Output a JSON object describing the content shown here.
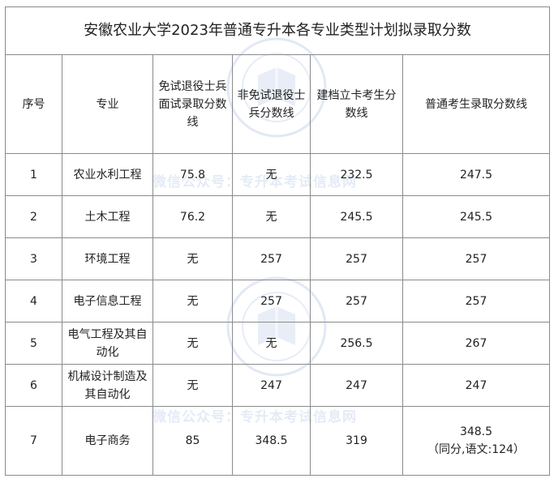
{
  "title": "安徽农业大学2023年普通专升本各专业类型计划拟录取分数",
  "headers": {
    "no": "序号",
    "major": "专业",
    "exempt": "免试退役士兵面试录取分数线",
    "nonexempt": "非免试退役士兵分数线",
    "registered": "建档立卡考生分数线",
    "regular": "普通考生录取分数线"
  },
  "rows": [
    {
      "no": "1",
      "major": "农业水利工程",
      "exempt": "75.8",
      "nonexempt": "无",
      "registered": "232.5",
      "regular": "247.5",
      "note": ""
    },
    {
      "no": "2",
      "major": "土木工程",
      "exempt": "76.2",
      "nonexempt": "无",
      "registered": "245.5",
      "regular": "245.5",
      "note": ""
    },
    {
      "no": "3",
      "major": "环境工程",
      "exempt": "无",
      "nonexempt": "257",
      "registered": "257",
      "regular": "257",
      "note": ""
    },
    {
      "no": "4",
      "major": "电子信息工程",
      "exempt": "无",
      "nonexempt": "257",
      "registered": "257",
      "regular": "257",
      "note": ""
    },
    {
      "no": "5",
      "major": "电气工程及其自动化",
      "exempt": "无",
      "nonexempt": "无",
      "registered": "256.5",
      "regular": "267",
      "note": ""
    },
    {
      "no": "6",
      "major": "机械设计制造及其自动化",
      "exempt": "无",
      "nonexempt": "247",
      "registered": "247",
      "regular": "247",
      "note": ""
    },
    {
      "no": "7",
      "major": "电子商务",
      "exempt": "85",
      "nonexempt": "348.5",
      "registered": "319",
      "regular": "348.5",
      "note": "（同分,语文:124）"
    }
  ],
  "watermark": {
    "text": "微信公众号：专升本考试信息网",
    "seal_text": "专升本考试信息网",
    "seal_color": "#5a82c8"
  }
}
